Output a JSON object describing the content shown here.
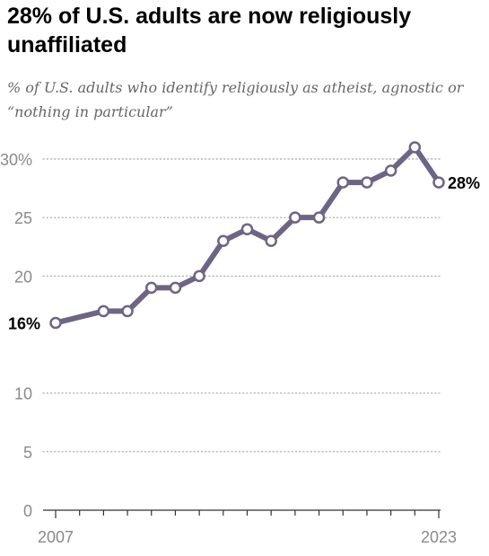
{
  "title": "28% of U.S. adults are now religiously unaffiliated",
  "subtitle": "% of U.S. adults who identify religiously as atheist, agnostic or “nothing in particular”",
  "colors": {
    "series": "#6e6584",
    "grid": "#a6a6a6",
    "axis_text": "#8a8a8a"
  },
  "chart_data": {
    "type": "line",
    "title": "28% of U.S. adults are now religiously unaffiliated",
    "subtitle": "% of U.S. adults who identify religiously as atheist, agnostic or “nothing in particular”",
    "xlabel": "",
    "ylabel": "",
    "x": [
      2007,
      2009,
      2010,
      2011,
      2012,
      2013,
      2014,
      2015,
      2016,
      2017,
      2018,
      2019,
      2020,
      2021,
      2022,
      2023
    ],
    "x_tick_labels": [
      "2007",
      "2023"
    ],
    "y_ticks": [
      0,
      5,
      10,
      20,
      25,
      30
    ],
    "y_tick_labels": [
      "0",
      "5",
      "10",
      "20",
      "25",
      "30%"
    ],
    "ylim": [
      0,
      30
    ],
    "grid": true,
    "series": [
      {
        "values": [
          16,
          17,
          17,
          19,
          19,
          20,
          23,
          24,
          23,
          25,
          25,
          28,
          28,
          29,
          31,
          28
        ]
      }
    ],
    "annotations": [
      {
        "x": 2007,
        "y": 16,
        "text": "16%"
      },
      {
        "x": 2023,
        "y": 28,
        "text": "28%"
      }
    ]
  }
}
